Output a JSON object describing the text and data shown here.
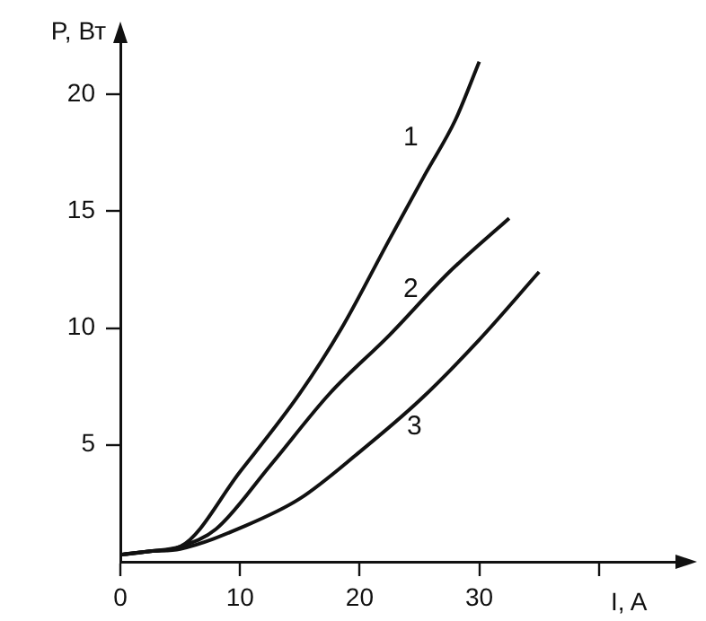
{
  "chart_data": {
    "type": "line",
    "xlabel": "I, A",
    "ylabel": "P, Вт",
    "xlim": [
      0,
      47
    ],
    "ylim": [
      0,
      22.5
    ],
    "xticks": [
      0,
      10,
      20,
      30,
      {
        "value": 40,
        "label": null
      }
    ],
    "yticks": [
      5,
      10,
      15,
      20
    ],
    "grid": false,
    "legend": false,
    "marker": "none",
    "line_style": "solid",
    "series": [
      {
        "name": "1",
        "color": "#111111",
        "x": [
          0,
          2.5,
          5,
          10,
          15,
          18.5,
          22.5,
          25.5,
          28,
          30
        ],
        "values": [
          0.3,
          0.45,
          0.65,
          3.85,
          7.2,
          10,
          13.8,
          16.6,
          18.9,
          21.4
        ]
      },
      {
        "name": "2",
        "color": "#111111",
        "x": [
          0,
          2.5,
          5,
          8,
          12.5,
          17.5,
          22.5,
          27.5,
          32.5
        ],
        "values": [
          0.3,
          0.45,
          0.65,
          1.4,
          4.1,
          7.2,
          9.7,
          12.4,
          14.7
        ]
      },
      {
        "name": "3",
        "color": "#111111",
        "x": [
          0,
          2.5,
          5,
          10.5,
          15,
          20,
          25,
          30,
          35
        ],
        "values": [
          0.3,
          0.45,
          0.55,
          1.55,
          2.7,
          4.7,
          6.9,
          9.5,
          12.4
        ]
      }
    ]
  }
}
